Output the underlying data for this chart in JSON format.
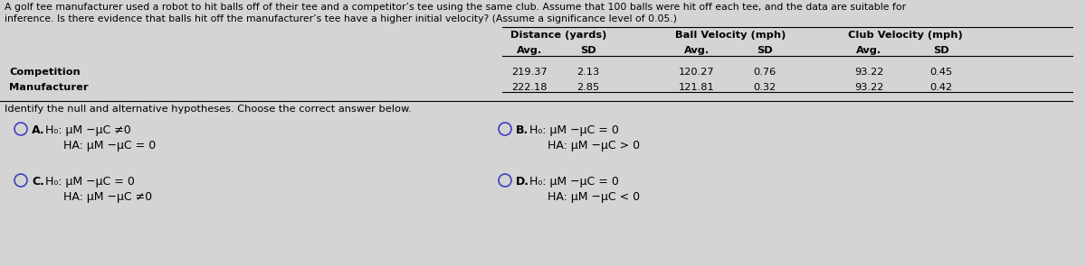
{
  "bg_color": "#d4d4d4",
  "title_line1": "A golf tee manufacturer used a robot to hit balls off of their tee and a competitor’s tee using the same club. Assume that 100 balls were hit off each tee, and the data are suitable for",
  "title_line2": "inference. Is there evidence that balls hit off the manufacturer’s tee have a higher initial velocity? (Assume a significance level of 0.05.)",
  "col_headers": [
    "Distance (yards)",
    "Ball Velocity (mph)",
    "Club Velocity (mph)"
  ],
  "subheaders": [
    "Avg.",
    "SD",
    "Avg.",
    "SD",
    "Avg.",
    "SD"
  ],
  "row_labels": [
    "Competition",
    "Manufacturer"
  ],
  "row_data": [
    [
      "219.37",
      "2.13",
      "120.27",
      "0.76",
      "93.22",
      "0.45"
    ],
    [
      "222.18",
      "2.85",
      "121.81",
      "0.32",
      "93.22",
      "0.42"
    ]
  ],
  "question_text": "Identify the null and alternative hypotheses. Choose the correct answer below.",
  "opt_A_h0": "H₀: μM −μC ≠0",
  "opt_A_ha": "HA: μM −μC = 0",
  "opt_B_h0": "H₀: μM −μC = 0",
  "opt_B_ha": "HA: μM −μC > 0",
  "opt_C_h0": "H₀: μM −μC = 0",
  "opt_C_ha": "HA: μM −μC ≠0",
  "opt_D_h0": "H₀: μM −μC = 0",
  "opt_D_ha": "HA: μM −μC < 0",
  "fs_title": 7.8,
  "fs_table_header": 8.2,
  "fs_table_data": 8.2,
  "fs_question": 8.2,
  "fs_options": 9.0,
  "circle_color": "#4040c0"
}
